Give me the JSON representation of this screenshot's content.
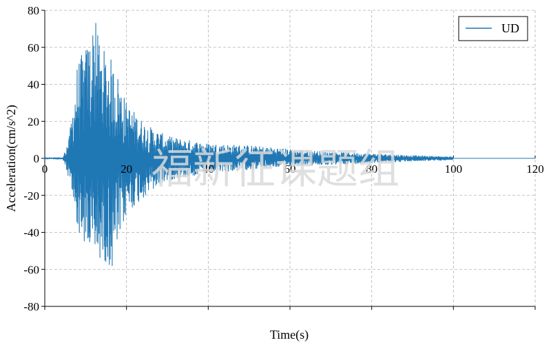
{
  "chart_data": {
    "type": "line",
    "xlabel": "Time(s)",
    "ylabel": "Acceleration(cm/s^2)",
    "xlim": [
      0,
      120
    ],
    "ylim": [
      -80,
      80
    ],
    "xticks": [
      0,
      20,
      40,
      60,
      80,
      100,
      120
    ],
    "yticks": [
      -80,
      -60,
      -40,
      -20,
      0,
      20,
      40,
      60,
      80
    ],
    "grid": true,
    "grid_style": "dashed",
    "legend_placement": "top-right",
    "zero_line": true,
    "series": [
      {
        "name": "UD",
        "color": "#1f77b4",
        "signal_duration_s": 100,
        "onset_s": 4.5,
        "peak_positive": {
          "x": 12.5,
          "y": 73
        },
        "peak_negative": {
          "x": 16.5,
          "y": -58
        },
        "envelope": {
          "x": [
            0,
            4.5,
            6,
            8,
            10,
            12,
            14,
            16,
            18,
            20,
            25,
            30,
            40,
            50,
            60,
            70,
            80,
            90,
            100
          ],
          "pos": [
            0.5,
            1,
            12,
            52,
            60,
            73,
            60,
            55,
            45,
            30,
            18,
            12,
            8,
            7,
            5,
            3.5,
            2.5,
            1.5,
            0.8
          ],
          "neg": [
            -0.5,
            -1,
            -12,
            -38,
            -50,
            -54,
            -55,
            -58,
            -48,
            -30,
            -20,
            -12,
            -8,
            -6,
            -4,
            -3.5,
            -2.5,
            -1.5,
            -0.8
          ]
        }
      }
    ]
  },
  "watermark": "福新征课题组"
}
